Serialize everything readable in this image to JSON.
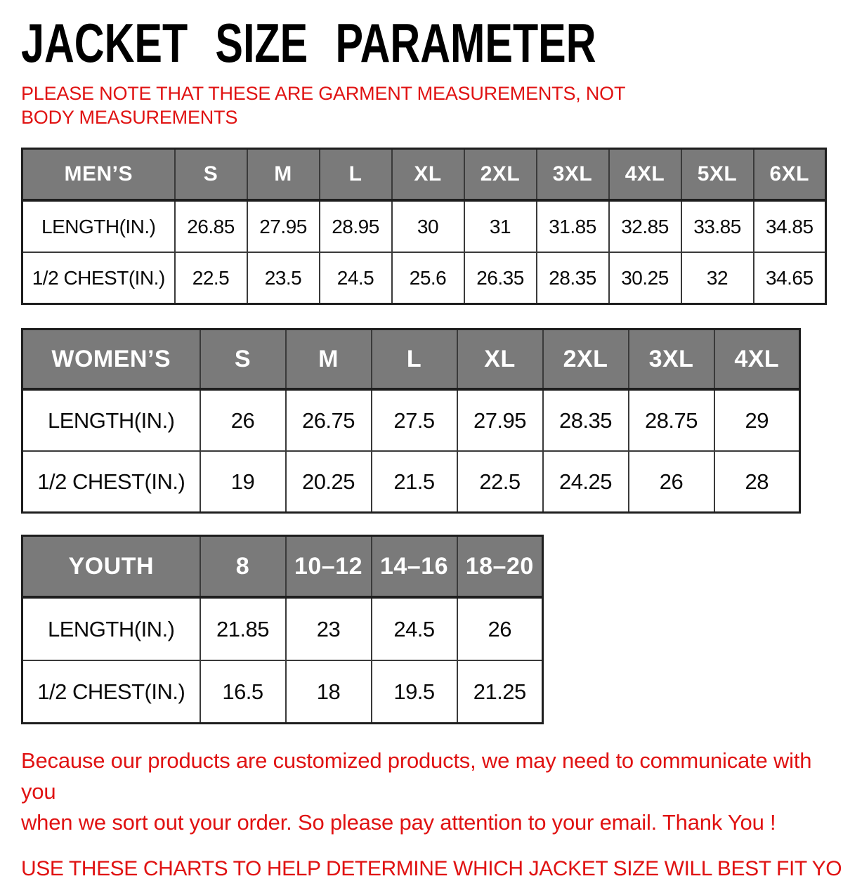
{
  "page": {
    "title": "JACKET SIZE PARAMETER",
    "note": "PLEASE NOTE THAT THESE ARE GARMENT MEASUREMENTS, NOT BODY MEASUREMENTS"
  },
  "colors": {
    "header_bg": "#7a7a7a",
    "header_text": "#ffffff",
    "border_dark": "#1e1e1e",
    "border_inner": "#3a3a3a",
    "accent_red": "#e01212"
  },
  "tables": [
    {
      "id": "mens",
      "title": "MEN’S",
      "sizes": [
        "S",
        "M",
        "L",
        "XL",
        "2XL",
        "3XL",
        "4XL",
        "5XL",
        "6XL"
      ],
      "rows": [
        {
          "label": "LENGTH(IN.)",
          "values": [
            "26.85",
            "27.95",
            "28.95",
            "30",
            "31",
            "31.85",
            "32.85",
            "33.85",
            "34.85"
          ]
        },
        {
          "label": "1/2 CHEST(IN.)",
          "values": [
            "22.5",
            "23.5",
            "24.5",
            "25.6",
            "26.35",
            "28.35",
            "30.25",
            "32",
            "34.65"
          ]
        }
      ]
    },
    {
      "id": "womens",
      "title": "WOMEN’S",
      "sizes": [
        "S",
        "M",
        "L",
        "XL",
        "2XL",
        "3XL",
        "4XL"
      ],
      "rows": [
        {
          "label": "LENGTH(IN.)",
          "values": [
            "26",
            "26.75",
            "27.5",
            "27.95",
            "28.35",
            "28.75",
            "29"
          ]
        },
        {
          "label": "1/2 CHEST(IN.)",
          "values": [
            "19",
            "20.25",
            "21.5",
            "22.5",
            "24.25",
            "26",
            "28"
          ]
        }
      ]
    },
    {
      "id": "youth",
      "title": "YOUTH",
      "sizes": [
        "8",
        "10–12",
        "14–16",
        "18–20"
      ],
      "rows": [
        {
          "label": "LENGTH(IN.)",
          "values": [
            "21.85",
            "23",
            "24.5",
            "26"
          ]
        },
        {
          "label": "1/2 CHEST(IN.)",
          "values": [
            "16.5",
            "18",
            "19.5",
            "21.25"
          ]
        }
      ]
    }
  ],
  "footer": {
    "line1": "Because our products are customized products, we may need to communicate with you",
    "line2": "when we sort out your order. So please pay attention to your email. Thank You !",
    "cta": "USE THESE CHARTS TO HELP DETERMINE WHICH JACKET SIZE WILL BEST FIT YOU."
  }
}
